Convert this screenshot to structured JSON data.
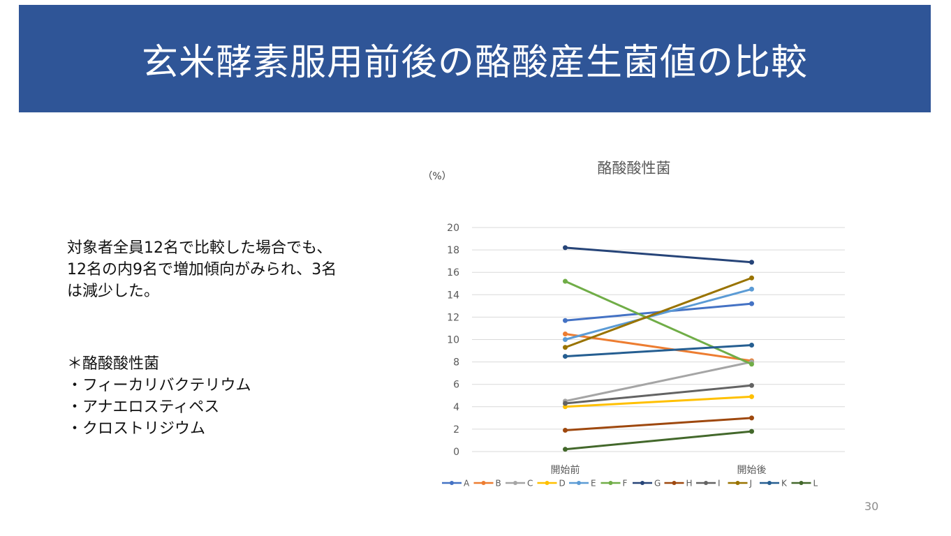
{
  "slide": {
    "title": "玄米酵素服用前後の酪酸産生菌値の比較",
    "body_lines": [
      "対象者全員12名で比較した場合でも、",
      "12名の内9名で増加傾向がみられ、3名",
      "は減少した。"
    ],
    "note_lines": [
      "＊酪酸酸性菌",
      "・フィーカリバクテリウム",
      "・アナエロスティペス",
      "・クロストリジウム"
    ],
    "page_number": "30"
  },
  "chart_data": {
    "type": "line",
    "title": "酪酸酸性菌",
    "ylabel": "（%）",
    "categories": [
      "開始前",
      "開始後"
    ],
    "ylim": [
      0,
      20
    ],
    "yticks": [
      0,
      2,
      4,
      6,
      8,
      10,
      12,
      14,
      16,
      18,
      20
    ],
    "grid": true,
    "legend_position": "bottom",
    "series": [
      {
        "name": "A",
        "color": "#4472c4",
        "values": [
          11.7,
          13.2
        ]
      },
      {
        "name": "B",
        "color": "#ed7d31",
        "values": [
          10.5,
          8.1
        ]
      },
      {
        "name": "C",
        "color": "#a5a5a5",
        "values": [
          4.5,
          8.0
        ]
      },
      {
        "name": "D",
        "color": "#ffc000",
        "values": [
          4.0,
          4.9
        ]
      },
      {
        "name": "E",
        "color": "#5b9bd5",
        "values": [
          10.0,
          14.5
        ]
      },
      {
        "name": "F",
        "color": "#70ad47",
        "values": [
          15.2,
          7.8
        ]
      },
      {
        "name": "G",
        "color": "#264478",
        "values": [
          18.2,
          16.9
        ]
      },
      {
        "name": "H",
        "color": "#9e480e",
        "values": [
          1.9,
          3.0
        ]
      },
      {
        "name": "I",
        "color": "#636363",
        "values": [
          4.3,
          5.9
        ]
      },
      {
        "name": "J",
        "color": "#997300",
        "values": [
          9.3,
          15.5
        ]
      },
      {
        "name": "K",
        "color": "#255e91",
        "values": [
          8.5,
          9.5
        ]
      },
      {
        "name": "L",
        "color": "#43682b",
        "values": [
          0.2,
          1.8
        ]
      }
    ]
  }
}
